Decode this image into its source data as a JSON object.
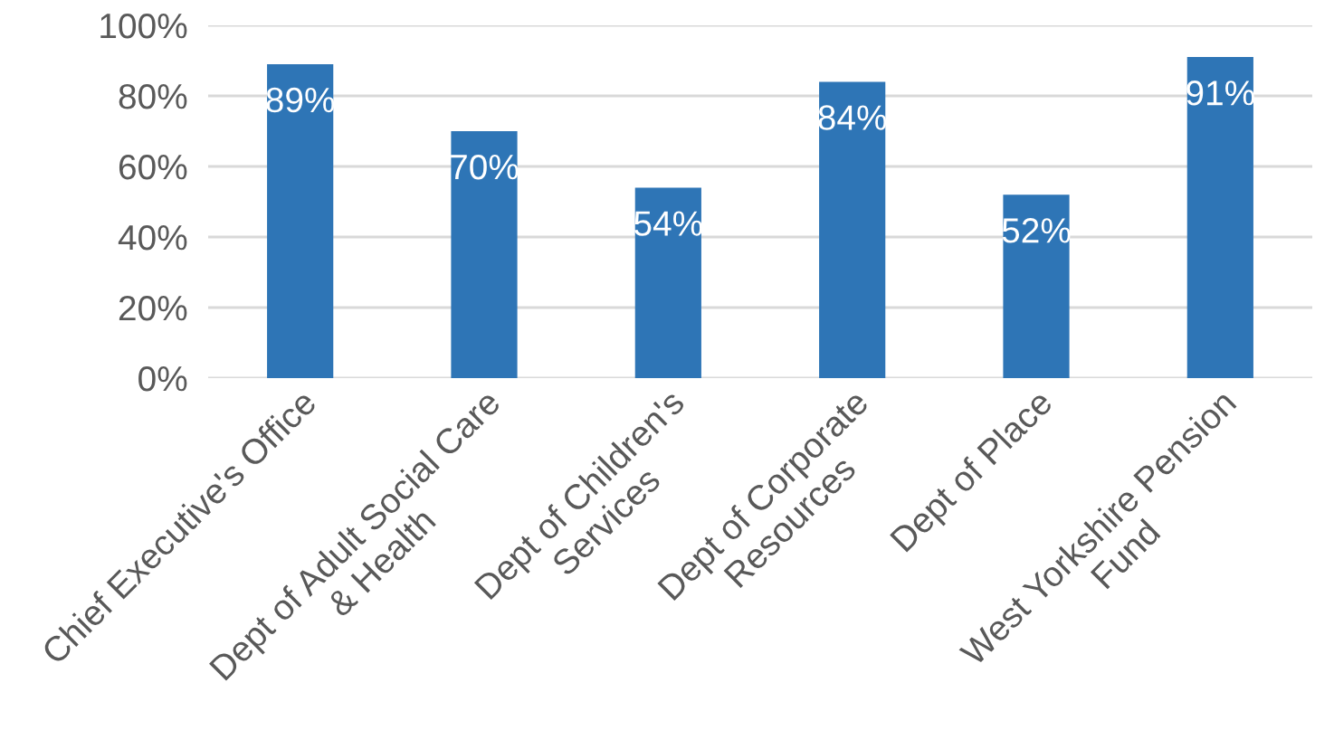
{
  "chart_data": {
    "type": "bar",
    "categories": [
      "Chief Executive's Office",
      "Dept of Adult Social Care\n& Health",
      "Dept of Children's\nServices",
      "Dept of Corporate\nResources",
      "Dept of Place",
      "West Yorkshire Pension\nFund"
    ],
    "values": [
      89,
      70,
      54,
      84,
      52,
      91
    ],
    "value_labels": [
      "89%",
      "70%",
      "54%",
      "84%",
      "52%",
      "91%"
    ],
    "color": "#2e75b6",
    "ylim": [
      0,
      100
    ],
    "yticks": [
      {
        "value": 0,
        "label": "0%"
      },
      {
        "value": 20,
        "label": "20%"
      },
      {
        "value": 40,
        "label": "40%"
      },
      {
        "value": 60,
        "label": "60%"
      },
      {
        "value": 80,
        "label": "80%"
      },
      {
        "value": 100,
        "label": "100%"
      }
    ],
    "grid": "y"
  }
}
